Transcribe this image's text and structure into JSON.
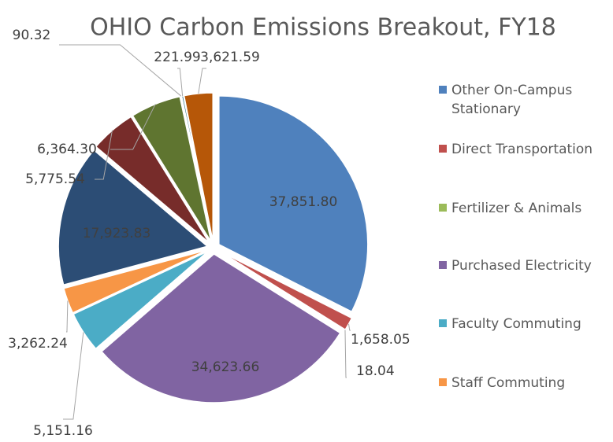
{
  "chart_data": {
    "type": "pie",
    "title": "OHIO Carbon Emissions Breakout, FY18",
    "categories": [
      "Other On-Campus Stationary",
      "Direct Transportation",
      "Fertilizer & Animals",
      "Purchased Electricity",
      "Faculty Commuting",
      "Staff Commuting",
      null,
      null,
      null,
      null,
      null,
      null
    ],
    "values": [
      37851.8,
      1658.05,
      18.04,
      34623.66,
      5151.16,
      3262.24,
      17923.83,
      5775.54,
      6364.3,
      90.32,
      221.99,
      3621.59
    ],
    "value_labels": [
      "37,851.80",
      "1,658.05",
      "18.04",
      "34,623.66",
      "5,151.16",
      "3,262.24",
      "17,923.83",
      "5,775.54",
      "6,364.30",
      "90.32",
      "221.99",
      "3,621.59"
    ],
    "colors": [
      "#4f81bd",
      "#c0504d",
      "#9bbb59",
      "#8064a2",
      "#4bacc6",
      "#f79646",
      "#2c4d75",
      "#772c2a",
      "#5f7530",
      "#4d3b62",
      "#276a7c",
      "#b65708"
    ]
  }
}
